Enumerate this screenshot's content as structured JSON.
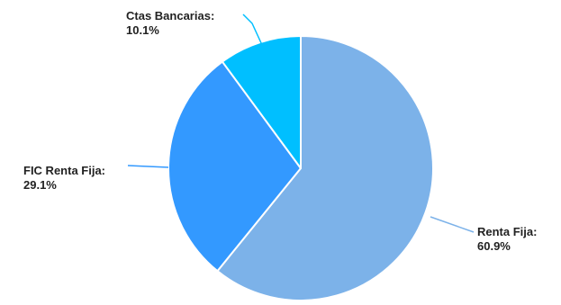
{
  "chart_data": {
    "type": "pie",
    "title": "",
    "slices": [
      {
        "label": "Renta Fija",
        "value": 60.9,
        "display": "60.9%",
        "color": "#7cb2e9"
      },
      {
        "label": "FIC Renta Fija",
        "value": 29.1,
        "display": "29.1%",
        "color": "#3399ff"
      },
      {
        "label": "Ctas Bancarias",
        "value": 10.1,
        "display": "10.1%",
        "color": "#00bfff"
      }
    ],
    "start_angle_deg": 0,
    "direction": "clockwise",
    "legend": "none",
    "data_labels": "outside-with-leader-lines"
  }
}
